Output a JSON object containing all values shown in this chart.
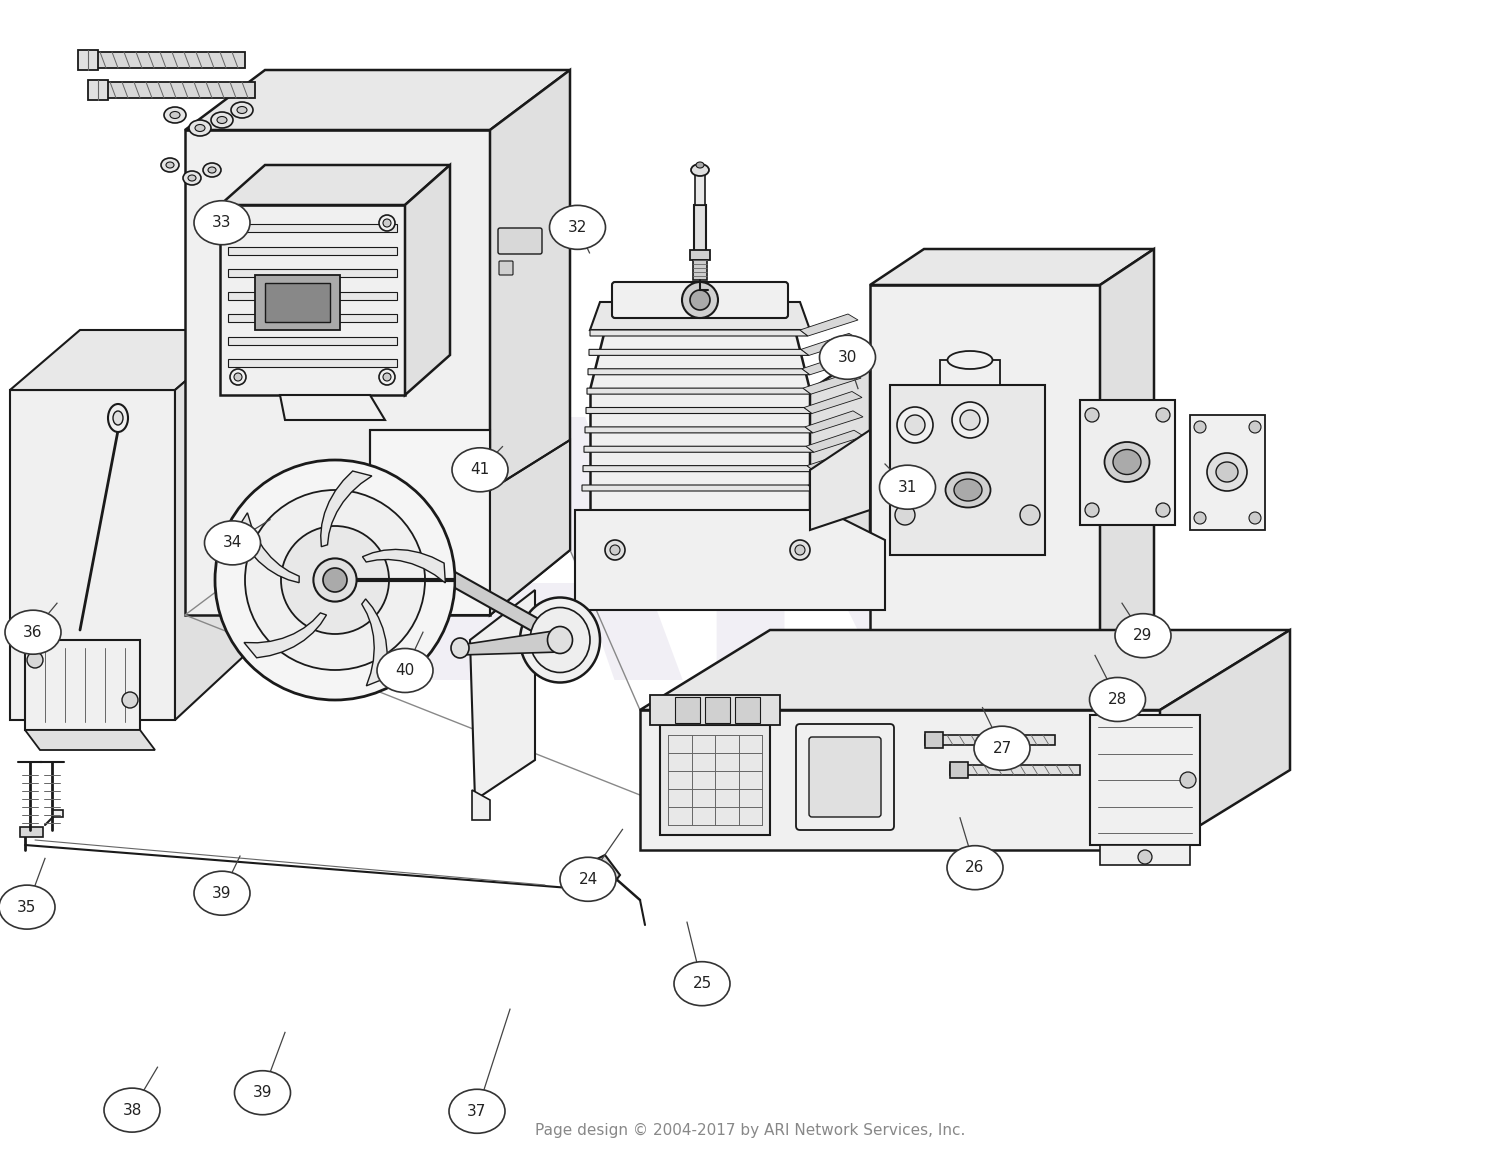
{
  "background_color": "#ffffff",
  "line_color": "#1a1a1a",
  "light_line_color": "#666666",
  "fill_white": "#ffffff",
  "fill_light": "#f0f0f0",
  "fill_mid": "#e0e0e0",
  "fill_dark": "#cccccc",
  "watermark_color": "#ddd8e8",
  "footer_text": "Page design © 2004-2017 by ARI Network Services, Inc.",
  "footer_color": "#888888",
  "callout_data": [
    [
      38,
      0.088,
      0.957,
      0.105,
      0.92
    ],
    [
      39,
      0.175,
      0.942,
      0.19,
      0.89
    ],
    [
      37,
      0.318,
      0.958,
      0.34,
      0.87
    ],
    [
      35,
      0.018,
      0.782,
      0.03,
      0.74
    ],
    [
      39,
      0.148,
      0.77,
      0.16,
      0.738
    ],
    [
      24,
      0.392,
      0.758,
      0.415,
      0.715
    ],
    [
      25,
      0.468,
      0.848,
      0.458,
      0.795
    ],
    [
      26,
      0.65,
      0.748,
      0.64,
      0.705
    ],
    [
      27,
      0.668,
      0.645,
      0.655,
      0.61
    ],
    [
      28,
      0.745,
      0.603,
      0.73,
      0.565
    ],
    [
      29,
      0.762,
      0.548,
      0.748,
      0.52
    ],
    [
      36,
      0.022,
      0.545,
      0.038,
      0.52
    ],
    [
      40,
      0.27,
      0.578,
      0.282,
      0.545
    ],
    [
      34,
      0.155,
      0.468,
      0.18,
      0.448
    ],
    [
      41,
      0.32,
      0.405,
      0.335,
      0.385
    ],
    [
      31,
      0.605,
      0.42,
      0.59,
      0.4
    ],
    [
      30,
      0.565,
      0.308,
      0.572,
      0.335
    ],
    [
      32,
      0.385,
      0.196,
      0.393,
      0.218
    ],
    [
      33,
      0.148,
      0.192,
      0.16,
      0.182
    ]
  ]
}
